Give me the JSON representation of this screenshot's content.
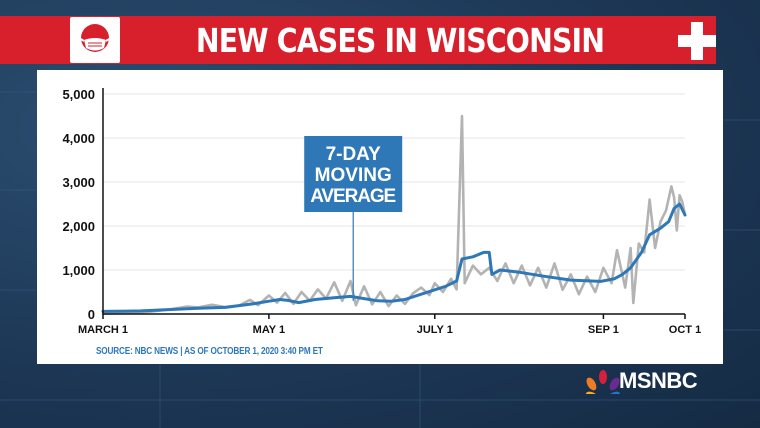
{
  "banner": {
    "title": "NEW CASES IN WISCONSIN"
  },
  "footer": {
    "source": "SOURCE: NBC NEWS | AS OF OCTOBER 1, 2020 3:40 PM ET"
  },
  "brand": {
    "name": "MSNBC",
    "accent": "#d8202c",
    "line_color": "#2e78b8",
    "daily_color": "#b3b3b3"
  },
  "icons": [
    "face-mask-icon",
    "medical-cross-icon",
    "peacock-icon"
  ],
  "chart_data": {
    "type": "line",
    "title": "NEW CASES IN WISCONSIN",
    "xlabel": "",
    "ylabel": "",
    "ylim": [
      0,
      5000
    ],
    "xlim": [
      "2020-03-01",
      "2020-10-01"
    ],
    "yticks": [
      0,
      1000,
      2000,
      3000,
      4000,
      5000
    ],
    "ytick_labels": [
      "0",
      "1,000",
      "2,000",
      "3,000",
      "4,000",
      "5,000"
    ],
    "xticks": [
      "2020-03-01",
      "2020-05-01",
      "2020-07-01",
      "2020-09-01",
      "2020-10-01"
    ],
    "xtick_labels": [
      "MARCH 1",
      "MAY 1",
      "JULY 1",
      "SEP 1",
      "OCT 1"
    ],
    "grid": true,
    "annotation": {
      "text": [
        "7-DAY",
        "MOVING",
        "AVERAGE"
      ],
      "date": "2020-06-01",
      "value": 300
    },
    "series": [
      {
        "name": "7-DAY MOVING AVERAGE",
        "style": "line",
        "points": [
          [
            "2020-03-01",
            60
          ],
          [
            "2020-03-15",
            70
          ],
          [
            "2020-03-25",
            100
          ],
          [
            "2020-04-05",
            130
          ],
          [
            "2020-04-15",
            150
          ],
          [
            "2020-04-25",
            230
          ],
          [
            "2020-05-01",
            290
          ],
          [
            "2020-05-05",
            330
          ],
          [
            "2020-05-08",
            310
          ],
          [
            "2020-05-12",
            260
          ],
          [
            "2020-05-18",
            330
          ],
          [
            "2020-05-25",
            370
          ],
          [
            "2020-05-31",
            400
          ],
          [
            "2020-06-05",
            350
          ],
          [
            "2020-06-10",
            300
          ],
          [
            "2020-06-15",
            290
          ],
          [
            "2020-06-20",
            330
          ],
          [
            "2020-06-25",
            430
          ],
          [
            "2020-07-01",
            550
          ],
          [
            "2020-07-05",
            630
          ],
          [
            "2020-07-09",
            750
          ],
          [
            "2020-07-11",
            1250
          ],
          [
            "2020-07-15",
            1300
          ],
          [
            "2020-07-19",
            1400
          ],
          [
            "2020-07-21",
            1400
          ],
          [
            "2020-07-22",
            900
          ],
          [
            "2020-07-25",
            1000
          ],
          [
            "2020-08-01",
            950
          ],
          [
            "2020-08-10",
            860
          ],
          [
            "2020-08-20",
            770
          ],
          [
            "2020-08-31",
            740
          ],
          [
            "2020-09-05",
            800
          ],
          [
            "2020-09-08",
            900
          ],
          [
            "2020-09-11",
            1050
          ],
          [
            "2020-09-15",
            1400
          ],
          [
            "2020-09-18",
            1800
          ],
          [
            "2020-09-22",
            1950
          ],
          [
            "2020-09-25",
            2100
          ],
          [
            "2020-09-27",
            2400
          ],
          [
            "2020-09-29",
            2500
          ],
          [
            "2020-10-01",
            2250
          ]
        ]
      },
      {
        "name": "",
        "style": "daily",
        "points": [
          [
            "2020-03-01",
            10
          ],
          [
            "2020-03-10",
            20
          ],
          [
            "2020-03-18",
            50
          ],
          [
            "2020-03-25",
            100
          ],
          [
            "2020-04-01",
            170
          ],
          [
            "2020-04-05",
            150
          ],
          [
            "2020-04-10",
            210
          ],
          [
            "2020-04-15",
            160
          ],
          [
            "2020-04-20",
            190
          ],
          [
            "2020-04-24",
            320
          ],
          [
            "2020-04-27",
            200
          ],
          [
            "2020-05-01",
            420
          ],
          [
            "2020-05-04",
            260
          ],
          [
            "2020-05-07",
            480
          ],
          [
            "2020-05-10",
            230
          ],
          [
            "2020-05-13",
            500
          ],
          [
            "2020-05-16",
            300
          ],
          [
            "2020-05-19",
            560
          ],
          [
            "2020-05-22",
            350
          ],
          [
            "2020-05-25",
            720
          ],
          [
            "2020-05-28",
            300
          ],
          [
            "2020-05-31",
            750
          ],
          [
            "2020-06-02",
            200
          ],
          [
            "2020-06-05",
            630
          ],
          [
            "2020-06-08",
            220
          ],
          [
            "2020-06-11",
            500
          ],
          [
            "2020-06-14",
            180
          ],
          [
            "2020-06-17",
            420
          ],
          [
            "2020-06-20",
            230
          ],
          [
            "2020-06-23",
            470
          ],
          [
            "2020-06-26",
            600
          ],
          [
            "2020-06-29",
            430
          ],
          [
            "2020-07-01",
            700
          ],
          [
            "2020-07-04",
            500
          ],
          [
            "2020-07-07",
            800
          ],
          [
            "2020-07-09",
            560
          ],
          [
            "2020-07-11",
            4500
          ],
          [
            "2020-07-12",
            700
          ],
          [
            "2020-07-15",
            1100
          ],
          [
            "2020-07-18",
            900
          ],
          [
            "2020-07-21",
            1050
          ],
          [
            "2020-07-24",
            750
          ],
          [
            "2020-07-27",
            1150
          ],
          [
            "2020-07-30",
            700
          ],
          [
            "2020-08-02",
            1100
          ],
          [
            "2020-08-05",
            650
          ],
          [
            "2020-08-08",
            1050
          ],
          [
            "2020-08-11",
            600
          ],
          [
            "2020-08-14",
            1150
          ],
          [
            "2020-08-17",
            550
          ],
          [
            "2020-08-20",
            900
          ],
          [
            "2020-08-23",
            450
          ],
          [
            "2020-08-26",
            850
          ],
          [
            "2020-08-29",
            500
          ],
          [
            "2020-09-01",
            1050
          ],
          [
            "2020-09-04",
            700
          ],
          [
            "2020-09-06",
            1450
          ],
          [
            "2020-09-09",
            600
          ],
          [
            "2020-09-11",
            1500
          ],
          [
            "2020-09-12",
            250
          ],
          [
            "2020-09-14",
            1600
          ],
          [
            "2020-09-16",
            1400
          ],
          [
            "2020-09-18",
            2600
          ],
          [
            "2020-09-20",
            1500
          ],
          [
            "2020-09-22",
            2100
          ],
          [
            "2020-09-24",
            2350
          ],
          [
            "2020-09-26",
            2900
          ],
          [
            "2020-09-27",
            2650
          ],
          [
            "2020-09-28",
            1900
          ],
          [
            "2020-09-29",
            2700
          ],
          [
            "2020-09-30",
            2550
          ],
          [
            "2020-10-01",
            2250
          ]
        ]
      }
    ]
  }
}
